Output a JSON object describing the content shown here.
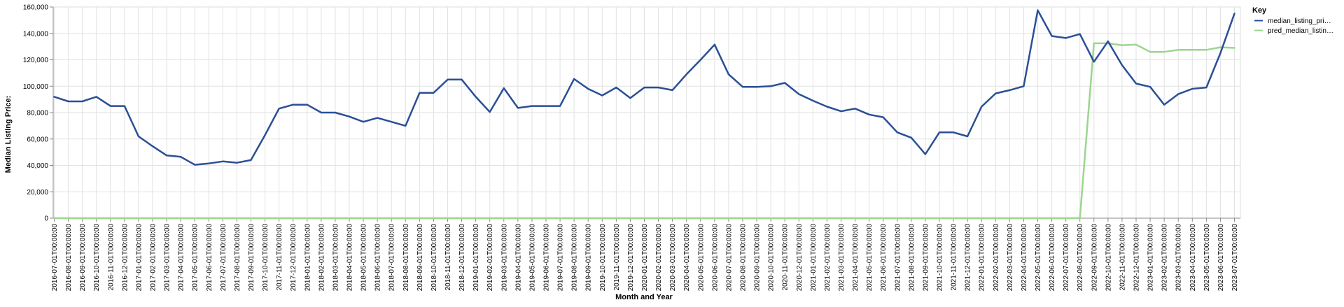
{
  "chart_data": {
    "type": "line",
    "xlabel": "Month and Year",
    "ylabel": "Median Listing Price:",
    "ylim": [
      0,
      160000
    ],
    "yticks": [
      0,
      20000,
      40000,
      60000,
      80000,
      100000,
      120000,
      140000,
      160000
    ],
    "ytick_labels": [
      "0",
      "20,000",
      "40,000",
      "60,000",
      "80,000",
      "100,000",
      "120,000",
      "140,000",
      "160,000"
    ],
    "grid": true,
    "legend_position": "top-right",
    "legend_title": "Key",
    "categories": [
      "2016-07-01T00:00:00",
      "2016-08-01T00:00:00",
      "2016-09-01T00:00:00",
      "2016-10-01T00:00:00",
      "2016-11-01T00:00:00",
      "2016-12-01T00:00:00",
      "2017-01-01T00:00:00",
      "2017-02-01T00:00:00",
      "2017-03-01T00:00:00",
      "2017-04-01T00:00:00",
      "2017-05-01T00:00:00",
      "2017-06-01T00:00:00",
      "2017-07-01T00:00:00",
      "2017-08-01T00:00:00",
      "2017-09-01T00:00:00",
      "2017-10-01T00:00:00",
      "2017-11-01T00:00:00",
      "2017-12-01T00:00:00",
      "2018-01-01T00:00:00",
      "2018-02-01T00:00:00",
      "2018-03-01T00:00:00",
      "2018-04-01T00:00:00",
      "2018-05-01T00:00:00",
      "2018-06-01T00:00:00",
      "2018-07-01T00:00:00",
      "2018-08-01T00:00:00",
      "2018-09-01T00:00:00",
      "2018-10-01T00:00:00",
      "2018-11-01T00:00:00",
      "2018-12-01T00:00:00",
      "2019-01-01T00:00:00",
      "2019-02-01T00:00:00",
      "2019-03-01T00:00:00",
      "2019-04-01T00:00:00",
      "2019-05-01T00:00:00",
      "2019-06-01T00:00:00",
      "2019-07-01T00:00:00",
      "2019-08-01T00:00:00",
      "2019-09-01T00:00:00",
      "2019-10-01T00:00:00",
      "2019-11-01T00:00:00",
      "2019-12-01T00:00:00",
      "2020-01-01T00:00:00",
      "2020-02-01T00:00:00",
      "2020-03-01T00:00:00",
      "2020-04-01T00:00:00",
      "2020-05-01T00:00:00",
      "2020-06-01T00:00:00",
      "2020-07-01T00:00:00",
      "2020-08-01T00:00:00",
      "2020-09-01T00:00:00",
      "2020-10-01T00:00:00",
      "2020-11-01T00:00:00",
      "2020-12-01T00:00:00",
      "2021-01-01T00:00:00",
      "2021-02-01T00:00:00",
      "2021-03-01T00:00:00",
      "2021-04-01T00:00:00",
      "2021-05-01T00:00:00",
      "2021-06-01T00:00:00",
      "2021-07-01T00:00:00",
      "2021-08-01T00:00:00",
      "2021-09-01T00:00:00",
      "2021-10-01T00:00:00",
      "2021-11-01T00:00:00",
      "2021-12-01T00:00:00",
      "2022-01-01T00:00:00",
      "2022-02-01T00:00:00",
      "2022-03-01T00:00:00",
      "2022-04-01T00:00:00",
      "2022-05-01T00:00:00",
      "2022-06-01T00:00:00",
      "2022-07-01T00:00:00",
      "2022-08-01T00:00:00",
      "2022-09-01T00:00:00",
      "2022-10-01T00:00:00",
      "2022-11-01T00:00:00",
      "2022-12-01T00:00:00",
      "2023-01-01T00:00:00",
      "2023-02-01T00:00:00",
      "2023-03-01T00:00:00",
      "2023-04-01T00:00:00",
      "2023-05-01T00:00:00",
      "2023-06-01T00:00:00",
      "2023-07-01T00:00:00"
    ],
    "series": [
      {
        "name": "median_listing_pri…",
        "color": "#2a4f96",
        "values": [
          92000,
          88500,
          88500,
          92000,
          85000,
          85000,
          62000,
          54500,
          47500,
          46500,
          40500,
          41500,
          43000,
          42000,
          44000,
          63000,
          83000,
          86000,
          86000,
          80000,
          80000,
          77000,
          73000,
          76000,
          73000,
          70000,
          95000,
          95000,
          105000,
          105000,
          92000,
          80500,
          98500,
          83500,
          85000,
          85000,
          85000,
          105500,
          98000,
          93000,
          99000,
          91000,
          99000,
          99000,
          97000,
          109000,
          120000,
          131500,
          109000,
          99500,
          99500,
          100000,
          102500,
          94000,
          89000,
          84500,
          81000,
          83000,
          78500,
          76500,
          65000,
          61000,
          48500,
          65000,
          65000,
          62000,
          84500,
          94500,
          97000,
          100000,
          157500,
          138000,
          136500,
          139500,
          118500,
          134000,
          116000,
          102000,
          99500,
          86000,
          94000,
          98000,
          99000,
          125000,
          155000
        ]
      },
      {
        "name": "pred_median_listin…",
        "color": "#9bd68e",
        "values": [
          0,
          0,
          0,
          0,
          0,
          0,
          0,
          0,
          0,
          0,
          0,
          0,
          0,
          0,
          0,
          0,
          0,
          0,
          0,
          0,
          0,
          0,
          0,
          0,
          0,
          0,
          0,
          0,
          0,
          0,
          0,
          0,
          0,
          0,
          0,
          0,
          0,
          0,
          0,
          0,
          0,
          0,
          0,
          0,
          0,
          0,
          0,
          0,
          0,
          0,
          0,
          0,
          0,
          0,
          0,
          0,
          0,
          0,
          0,
          0,
          0,
          0,
          0,
          0,
          0,
          0,
          0,
          0,
          0,
          0,
          0,
          0,
          0,
          0,
          132500,
          132500,
          131000,
          131500,
          126000,
          126000,
          127500,
          127500,
          127500,
          129500,
          129000
        ]
      }
    ]
  }
}
